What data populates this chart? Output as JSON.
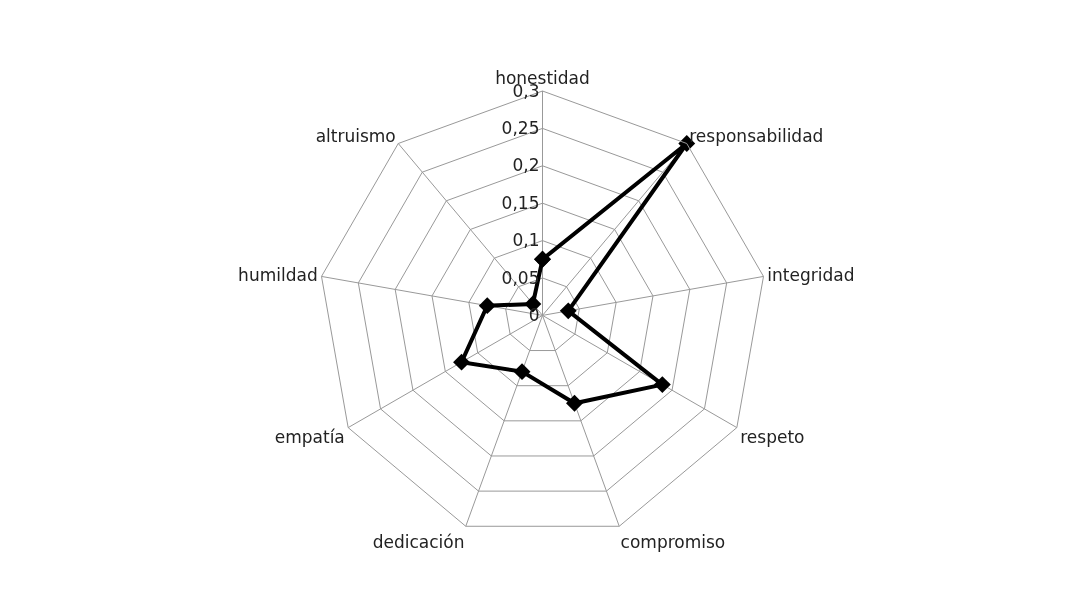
{
  "chart_data": {
    "type": "radar",
    "categories": [
      "honestidad",
      "responsabilidad",
      "integridad",
      "respeto",
      "compromiso",
      "dedicación",
      "empatía",
      "humildad",
      "altruismo"
    ],
    "series": [
      {
        "color": "#000000",
        "values": [
          0.075,
          0.3,
          0.035,
          0.185,
          0.125,
          0.08,
          0.125,
          0.075,
          0.02
        ]
      }
    ],
    "ylim": [
      0,
      0.3
    ],
    "yticks": [
      {
        "value": 0,
        "label": "0"
      },
      {
        "value": 0.05,
        "label": "0,05"
      },
      {
        "value": 0.1,
        "label": "0,1"
      },
      {
        "value": 0.15,
        "label": "0,15"
      },
      {
        "value": 0.2,
        "label": "0,2"
      },
      {
        "value": 0.25,
        "label": "0,25"
      },
      {
        "value": 0.3,
        "label": "0,3"
      }
    ],
    "marker": "diamond",
    "line_style": "solid",
    "grid": true
  }
}
